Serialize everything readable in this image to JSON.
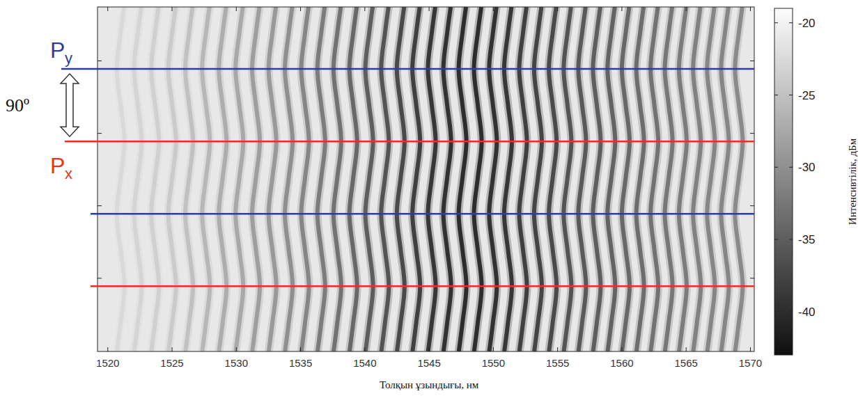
{
  "chart_data": {
    "type": "heatmap",
    "x_label": "Толқын ұзындығы, нм",
    "xlim": [
      1519.2,
      1570.3
    ],
    "xticks": [
      1520,
      1525,
      1530,
      1535,
      1540,
      1545,
      1550,
      1555,
      1560,
      1565,
      1570
    ],
    "ylim": [
      0,
      428
    ],
    "yticks": [
      91,
      181,
      271,
      361
    ],
    "tick_labels": "x",
    "background_dbm": -21,
    "y": [
      0,
      36,
      81,
      126,
      171,
      216,
      261,
      306,
      351,
      396,
      428
    ],
    "shift": [
      -0.29,
      0,
      0.3,
      0,
      -0.3,
      0,
      0.3,
      0,
      -0.3,
      0,
      0.27
    ],
    "fringes": [
      1521.0,
      1522.34,
      1523.68,
      1525.01,
      1526.33,
      1527.64,
      1528.94,
      1530.24,
      1531.53,
      1532.81,
      1534.08,
      1535.35,
      1536.61,
      1537.86,
      1539.1,
      1540.34,
      1541.57,
      1542.79,
      1544.0,
      1545.21,
      1546.41,
      1547.6,
      1548.79,
      1549.97,
      1551.14,
      1552.31,
      1553.47,
      1554.62,
      1555.77,
      1556.91,
      1558.05,
      1559.18,
      1560.3,
      1561.42,
      1562.53,
      1563.64,
      1564.74,
      1565.84,
      1566.93,
      1568.02,
      1569.1
    ],
    "fringe_min_dbm": [
      -22.5,
      -23,
      -23.5,
      -24,
      -25,
      -26,
      -27,
      -27.5,
      -28.5,
      -29,
      -30,
      -31,
      -32,
      -33,
      -34,
      -35,
      -36,
      -37,
      -38,
      -39,
      -39.5,
      -40,
      -40,
      -39.5,
      -39,
      -38,
      -37.5,
      -37,
      -36,
      -35.5,
      -35,
      -34.5,
      -34,
      -33.5,
      -33,
      -32.5,
      -32,
      -31.5,
      -31,
      -31,
      -30.5
    ],
    "colorbar": {
      "label": "Интенсивтілік, дБм",
      "range": [
        -43,
        -19
      ],
      "ticks": [
        -20,
        -25,
        -30,
        -35,
        -40
      ]
    },
    "lines": [
      {
        "y": 351,
        "color": "#2f3e9e",
        "label": "P",
        "subscript": "y"
      },
      {
        "y": 261,
        "color": "#e8321e",
        "label": "P",
        "subscript": "x"
      },
      {
        "y": 171,
        "color": "#2f3e9e"
      },
      {
        "y": 81,
        "color": "#e8321e"
      }
    ],
    "angle_label": "90º"
  }
}
